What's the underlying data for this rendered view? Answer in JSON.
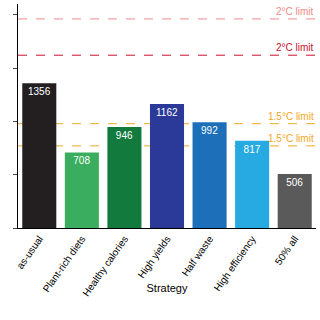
{
  "chart_data": {
    "type": "bar",
    "x_label": "Strategy",
    "categories": [
      "as-usual",
      "Plant-rich diets",
      "Healthy calories",
      "High yields",
      "Half waste",
      "High efficiency",
      "50% all"
    ],
    "values": [
      1356,
      708,
      946,
      1162,
      992,
      817,
      506
    ],
    "colors": [
      "#231f20",
      "#3aae5e",
      "#137a3e",
      "#2b3a98",
      "#1c6fb8",
      "#27a9e1",
      "#5a5a5a"
    ],
    "data_labels": true,
    "tick_labels": "x",
    "ylim": [
      0,
      2100
    ],
    "yticks": [
      0,
      500,
      1000,
      1500,
      2000
    ],
    "grid": false,
    "reference_lines": [
      {
        "value": 1960,
        "label": "2°C limit",
        "color": "#f08a8a"
      },
      {
        "value": 1620,
        "label": "2°C limit",
        "color": "#c8102e"
      },
      {
        "value": 978,
        "label": "1.5°C limit",
        "color": "#f5a623"
      },
      {
        "value": 770,
        "label": "1.5°C limit",
        "color": "#f5a623"
      }
    ]
  }
}
